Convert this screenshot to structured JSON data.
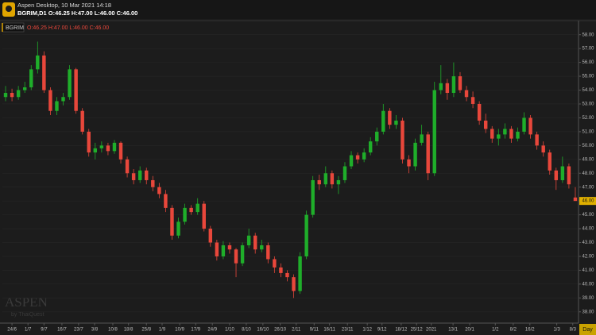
{
  "window_title": "Aspen Desktop, 10 Mar 2021 14:18",
  "header_ohlc": "BGRIM,D1  O:46.25 H:47.00 L:46.00 C:46.00",
  "logo_text": "ASPEN",
  "chart_data": {
    "type": "candlestick",
    "symbol": "BGRIM",
    "ohlc_label": "O:46.25 H:47.00 L:46.00 C:46.00",
    "up_color": "#1fae2a",
    "down_color": "#e8473b",
    "xlabel": "Day",
    "watermark": "ASPEN",
    "watermark_sub": "by ThaiQuest",
    "xlim": [
      -0.5,
      89.5
    ],
    "ylim": [
      37.3,
      58.9
    ],
    "yticks": [
      {
        "value": 38,
        "label": "38.00"
      },
      {
        "value": 39,
        "label": "39.00"
      },
      {
        "value": 40,
        "label": "40.00"
      },
      {
        "value": 41,
        "label": "41.00"
      },
      {
        "value": 42,
        "label": "42.00"
      },
      {
        "value": 43,
        "label": "43.00"
      },
      {
        "value": 44,
        "label": "44.00"
      },
      {
        "value": 45,
        "label": "45.00"
      },
      {
        "value": 46,
        "label": "46.00"
      },
      {
        "value": 47,
        "label": "47.00"
      },
      {
        "value": 48,
        "label": "48.00"
      },
      {
        "value": 49,
        "label": "49.00"
      },
      {
        "value": 50,
        "label": "50.00"
      },
      {
        "value": 51,
        "label": "51.00"
      },
      {
        "value": 52,
        "label": "52.00"
      },
      {
        "value": 53,
        "label": "53.00"
      },
      {
        "value": 54,
        "label": "54.00"
      },
      {
        "value": 55,
        "label": "55.00"
      },
      {
        "value": 56,
        "label": "56.00"
      },
      {
        "value": 57,
        "label": "57.00"
      },
      {
        "value": 58,
        "label": "58.00"
      }
    ],
    "last_price": {
      "value": 46,
      "label": "46.00"
    },
    "xticks": [
      {
        "value": 1,
        "label": "24/6"
      },
      {
        "value": 3.5,
        "label": "1/7"
      },
      {
        "value": 6,
        "label": "9/7"
      },
      {
        "value": 8.8,
        "label": "16/7"
      },
      {
        "value": 11.4,
        "label": "23/7"
      },
      {
        "value": 13.9,
        "label": "3/8"
      },
      {
        "value": 16.75,
        "label": "10/8"
      },
      {
        "value": 19.2,
        "label": "18/8"
      },
      {
        "value": 22,
        "label": "25/8"
      },
      {
        "value": 24.45,
        "label": "1/9"
      },
      {
        "value": 27.2,
        "label": "10/9"
      },
      {
        "value": 29.7,
        "label": "17/9"
      },
      {
        "value": 32.3,
        "label": "24/9"
      },
      {
        "value": 35,
        "label": "1/10"
      },
      {
        "value": 37.6,
        "label": "8/10"
      },
      {
        "value": 40.2,
        "label": "16/10"
      },
      {
        "value": 42.9,
        "label": "26/10"
      },
      {
        "value": 45.4,
        "label": "2/11"
      },
      {
        "value": 48.2,
        "label": "9/11"
      },
      {
        "value": 50.6,
        "label": "16/11"
      },
      {
        "value": 53.4,
        "label": "23/11"
      },
      {
        "value": 56.5,
        "label": "1/12"
      },
      {
        "value": 58.8,
        "label": "9/12"
      },
      {
        "value": 61.8,
        "label": "18/12"
      },
      {
        "value": 64.2,
        "label": "25/12"
      },
      {
        "value": 66.5,
        "label": "2021"
      },
      {
        "value": 69.9,
        "label": "13/1"
      },
      {
        "value": 72.5,
        "label": "20/1"
      },
      {
        "value": 76.5,
        "label": "1/2"
      },
      {
        "value": 79.3,
        "label": "8/2"
      },
      {
        "value": 81.9,
        "label": "16/2"
      },
      {
        "value": 86.1,
        "label": "1/3"
      },
      {
        "value": 88.6,
        "label": "8/3"
      }
    ],
    "ohlc": [
      [
        53.5,
        54.3,
        53.2,
        53.8
      ],
      [
        53.8,
        54.1,
        53.2,
        53.5
      ],
      [
        53.5,
        54.3,
        53.3,
        54.0
      ],
      [
        54.0,
        54.6,
        53.8,
        54.2
      ],
      [
        54.2,
        55.8,
        54.0,
        55.5
      ],
      [
        55.5,
        57.5,
        55.2,
        56.5
      ],
      [
        56.5,
        56.8,
        53.8,
        54.0
      ],
      [
        54.0,
        54.2,
        52.2,
        52.5
      ],
      [
        52.5,
        53.5,
        52.2,
        53.2
      ],
      [
        53.2,
        53.8,
        52.9,
        53.5
      ],
      [
        53.5,
        55.8,
        53.3,
        55.5
      ],
      [
        55.5,
        55.6,
        52.3,
        52.5
      ],
      [
        52.5,
        52.7,
        50.8,
        51.0
      ],
      [
        51.0,
        51.2,
        49.2,
        49.5
      ],
      [
        49.5,
        50.2,
        49.0,
        49.8
      ],
      [
        49.8,
        50.3,
        49.5,
        50.0
      ],
      [
        50.0,
        50.2,
        49.3,
        49.6
      ],
      [
        49.6,
        50.4,
        49.4,
        50.2
      ],
      [
        50.2,
        50.3,
        48.7,
        49.0
      ],
      [
        49.0,
        49.2,
        47.7,
        48.0
      ],
      [
        48.0,
        48.3,
        47.2,
        47.5
      ],
      [
        47.5,
        48.5,
        47.3,
        48.2
      ],
      [
        48.2,
        48.4,
        47.2,
        47.5
      ],
      [
        47.5,
        47.8,
        46.7,
        47.0
      ],
      [
        47.0,
        47.3,
        46.2,
        46.5
      ],
      [
        46.5,
        46.8,
        45.2,
        45.5
      ],
      [
        45.5,
        45.7,
        43.2,
        43.5
      ],
      [
        43.5,
        44.8,
        43.3,
        44.5
      ],
      [
        44.5,
        45.8,
        44.3,
        45.5
      ],
      [
        45.5,
        45.7,
        45.0,
        45.2
      ],
      [
        45.2,
        46.2,
        45.0,
        45.8
      ],
      [
        45.8,
        46.0,
        43.8,
        44.0
      ],
      [
        44.0,
        44.2,
        42.7,
        43.0
      ],
      [
        43.0,
        43.2,
        41.7,
        42.0
      ],
      [
        42.0,
        43.1,
        41.8,
        42.8
      ],
      [
        42.8,
        43.0,
        42.2,
        42.5
      ],
      [
        42.5,
        42.6,
        40.5,
        41.5
      ],
      [
        41.5,
        43.0,
        41.3,
        42.8
      ],
      [
        42.8,
        44.0,
        42.6,
        43.5
      ],
      [
        43.5,
        43.7,
        42.2,
        42.5
      ],
      [
        42.5,
        43.2,
        42.3,
        42.8
      ],
      [
        42.8,
        43.0,
        41.5,
        41.8
      ],
      [
        41.8,
        42.0,
        40.8,
        41.2
      ],
      [
        41.2,
        41.5,
        40.5,
        40.8
      ],
      [
        40.8,
        41.0,
        40.2,
        40.5
      ],
      [
        40.5,
        40.7,
        39.0,
        39.5
      ],
      [
        39.5,
        42.3,
        39.3,
        42.0
      ],
      [
        42.0,
        45.3,
        41.8,
        45.0
      ],
      [
        45.0,
        47.8,
        44.8,
        47.5
      ],
      [
        47.5,
        47.9,
        46.8,
        47.2
      ],
      [
        47.2,
        48.5,
        47.0,
        48.0
      ],
      [
        48.0,
        48.2,
        46.9,
        47.2
      ],
      [
        47.2,
        47.8,
        46.5,
        47.5
      ],
      [
        47.5,
        48.8,
        47.3,
        48.5
      ],
      [
        48.5,
        49.6,
        48.3,
        49.3
      ],
      [
        49.3,
        49.5,
        48.7,
        49.0
      ],
      [
        49.0,
        49.8,
        48.8,
        49.5
      ],
      [
        49.5,
        50.6,
        49.3,
        50.3
      ],
      [
        50.3,
        51.3,
        50.0,
        51.0
      ],
      [
        51.0,
        53.0,
        50.8,
        52.5
      ],
      [
        52.5,
        52.7,
        51.2,
        51.5
      ],
      [
        51.5,
        52.2,
        51.2,
        51.8
      ],
      [
        51.8,
        52.0,
        48.7,
        49.0
      ],
      [
        49.0,
        49.3,
        48.0,
        48.5
      ],
      [
        48.5,
        50.5,
        48.2,
        50.2
      ],
      [
        50.2,
        51.5,
        50.0,
        50.8
      ],
      [
        50.8,
        51.0,
        47.5,
        48.0
      ],
      [
        48.0,
        54.6,
        47.8,
        54.0
      ],
      [
        54.0,
        55.8,
        53.7,
        54.5
      ],
      [
        54.5,
        54.8,
        53.3,
        53.8
      ],
      [
        53.8,
        56.0,
        53.5,
        55.0
      ],
      [
        55.0,
        55.3,
        53.8,
        54.0
      ],
      [
        54.0,
        54.3,
        53.2,
        53.5
      ],
      [
        53.5,
        53.9,
        52.7,
        53.0
      ],
      [
        53.0,
        53.2,
        51.5,
        51.8
      ],
      [
        51.8,
        52.3,
        50.9,
        51.2
      ],
      [
        51.2,
        51.4,
        50.2,
        50.5
      ],
      [
        50.5,
        51.2,
        50.0,
        50.8
      ],
      [
        50.8,
        51.6,
        50.5,
        51.2
      ],
      [
        51.2,
        51.4,
        50.2,
        50.5
      ],
      [
        50.5,
        51.3,
        50.3,
        51.0
      ],
      [
        51.0,
        52.4,
        50.8,
        52.0
      ],
      [
        52.0,
        52.2,
        50.5,
        50.8
      ],
      [
        50.8,
        51.0,
        49.7,
        50.0
      ],
      [
        50.0,
        50.3,
        49.2,
        49.5
      ],
      [
        49.5,
        49.7,
        47.9,
        48.2
      ],
      [
        48.2,
        48.4,
        46.8,
        47.5
      ],
      [
        47.5,
        49.2,
        47.3,
        48.5
      ],
      [
        48.5,
        48.7,
        46.9,
        47.2
      ],
      [
        46.25,
        47,
        46,
        46
      ]
    ]
  }
}
